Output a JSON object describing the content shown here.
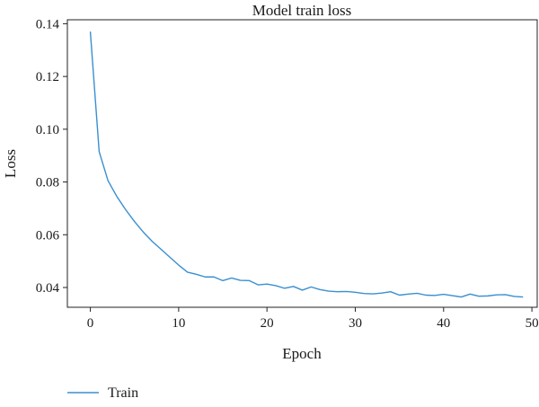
{
  "chart_data": {
    "type": "line",
    "title": "Model train loss",
    "xlabel": "Epoch",
    "ylabel": "Loss",
    "xlim": [
      -2.6,
      50.6
    ],
    "ylim": [
      0.0325,
      0.1415
    ],
    "xticks": [
      0,
      10,
      20,
      30,
      40,
      50
    ],
    "yticks": [
      0.04,
      0.06,
      0.08,
      0.1,
      0.12,
      0.14
    ],
    "xtick_labels": [
      "0",
      "10",
      "20",
      "30",
      "40",
      "50"
    ],
    "ytick_labels": [
      "0.04",
      "0.06",
      "0.08",
      "0.10",
      "0.12",
      "0.14"
    ],
    "grid": false,
    "legend_position": "bottom-left",
    "series": [
      {
        "name": "Train",
        "color": "#3a8fd0",
        "x": [
          0,
          1,
          2,
          3,
          4,
          5,
          6,
          7,
          8,
          9,
          10,
          11,
          12,
          13,
          14,
          15,
          16,
          17,
          18,
          19,
          20,
          21,
          22,
          23,
          24,
          25,
          26,
          27,
          28,
          29,
          30,
          31,
          32,
          33,
          34,
          35,
          36,
          37,
          38,
          39,
          40,
          41,
          42,
          43,
          44,
          45,
          46,
          47,
          48,
          49
        ],
        "y": [
          0.137,
          0.0915,
          0.0805,
          0.0745,
          0.0695,
          0.065,
          0.061,
          0.0575,
          0.0545,
          0.0515,
          0.0485,
          0.0458,
          0.045,
          0.044,
          0.044,
          0.0426,
          0.0436,
          0.0427,
          0.0426,
          0.041,
          0.0413,
          0.0407,
          0.0397,
          0.0404,
          0.039,
          0.0402,
          0.0392,
          0.0386,
          0.0384,
          0.0385,
          0.0382,
          0.0377,
          0.0376,
          0.0379,
          0.0384,
          0.0371,
          0.0375,
          0.0378,
          0.0371,
          0.037,
          0.0374,
          0.0369,
          0.0364,
          0.0375,
          0.0367,
          0.0368,
          0.0372,
          0.0373,
          0.0366,
          0.0364
        ]
      }
    ]
  }
}
